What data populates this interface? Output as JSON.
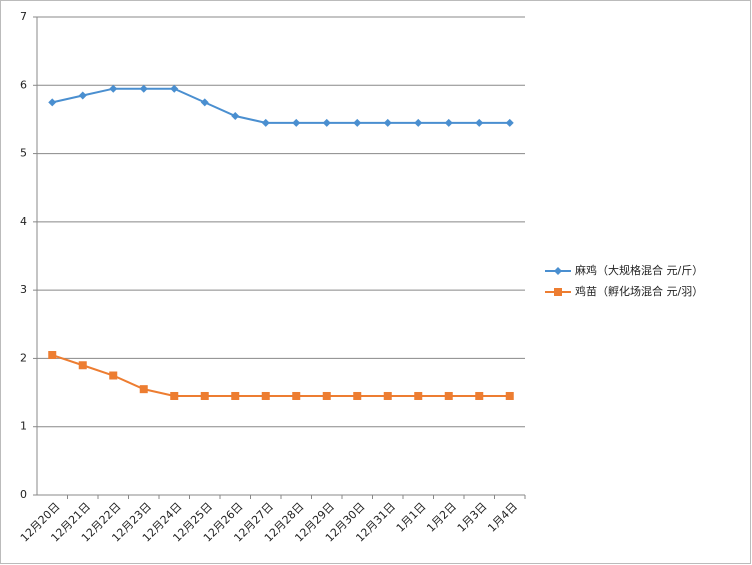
{
  "chart_data": {
    "type": "line",
    "categories": [
      "12月20日",
      "12月21日",
      "12月22日",
      "12月23日",
      "12月24日",
      "12月25日",
      "12月26日",
      "12月27日",
      "12月28日",
      "12月29日",
      "12月30日",
      "12月31日",
      "1月1日",
      "1月2日",
      "1月3日",
      "1月4日"
    ],
    "series": [
      {
        "name": "麻鸡（大规格混合 元/斤）",
        "color": "#4a8fd0",
        "marker": "diamond",
        "values": [
          5.75,
          5.85,
          5.95,
          5.95,
          5.95,
          5.75,
          5.55,
          5.45,
          5.45,
          5.45,
          5.45,
          5.45,
          5.45,
          5.45,
          5.45,
          5.45
        ]
      },
      {
        "name": "鸡苗（孵化场混合 元/羽）",
        "color": "#ed7d31",
        "marker": "square",
        "values": [
          2.05,
          1.9,
          1.75,
          1.55,
          1.45,
          1.45,
          1.45,
          1.45,
          1.45,
          1.45,
          1.45,
          1.45,
          1.45,
          1.45,
          1.45,
          1.45
        ]
      }
    ],
    "ylim": [
      0,
      7
    ],
    "yticks": [
      0,
      1,
      2,
      3,
      4,
      5,
      6,
      7
    ],
    "grid": true,
    "legend": "right"
  }
}
